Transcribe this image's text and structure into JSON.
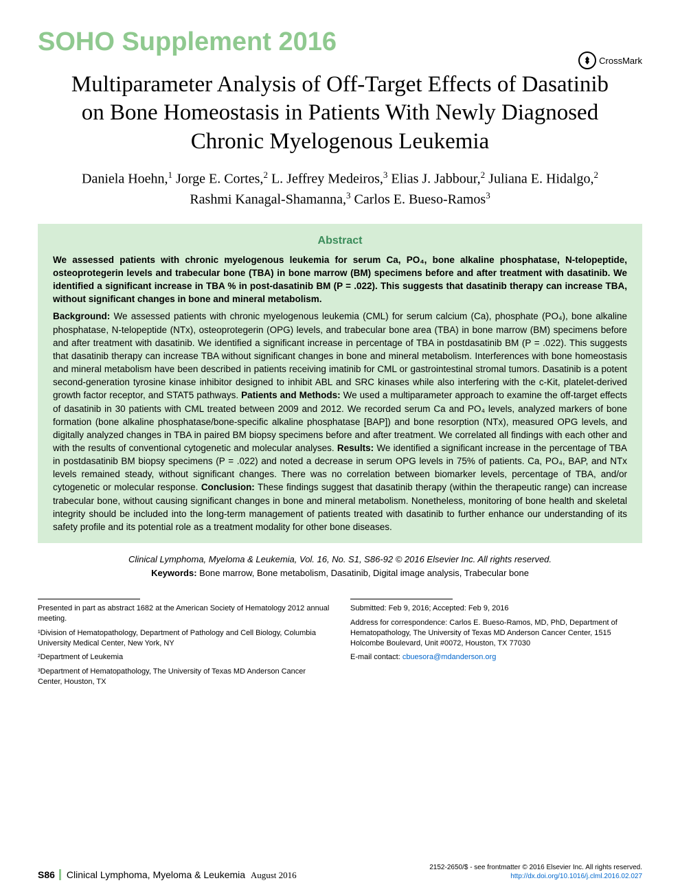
{
  "header": {
    "banner": "SOHO Supplement 2016",
    "crossmark_label": "CrossMark"
  },
  "title": "Multiparameter Analysis of Off-Target Effects of Dasatinib on Bone Homeostasis in Patients With Newly Diagnosed Chronic Myelogenous Leukemia",
  "authors_html": "Daniela Hoehn,<sup>1</sup> Jorge E. Cortes,<sup>2</sup> L. Jeffrey Medeiros,<sup>3</sup> Elias J. Jabbour,<sup>2</sup> Juliana E. Hidalgo,<sup>2</sup> Rashmi Kanagal-Shamanna,<sup>3</sup> Carlos E. Bueso-Ramos<sup>3</sup>",
  "abstract": {
    "heading": "Abstract",
    "summary": "We assessed patients with chronic myelogenous leukemia for serum Ca, PO₄, bone alkaline phosphatase, N-telopeptide, osteoprotegerin levels and trabecular bone (TBA) in bone marrow (BM) specimens before and after treatment with dasatinib. We identified a significant increase in TBA % in post-dasatinib BM (P = .022). This suggests that dasatinib therapy can increase TBA, without significant changes in bone and mineral metabolism.",
    "background_label": "Background:",
    "background": " We assessed patients with chronic myelogenous leukemia (CML) for serum calcium (Ca), phosphate (PO₄), bone alkaline phosphatase, N-telopeptide (NTx), osteoprotegerin (OPG) levels, and trabecular bone area (TBA) in bone marrow (BM) specimens before and after treatment with dasatinib. We identified a significant increase in percentage of TBA in postdasatinib BM (P = .022). This suggests that dasatinib therapy can increase TBA without significant changes in bone and mineral metabolism. Interferences with bone homeostasis and mineral metabolism have been described in patients receiving imatinib for CML or gastrointestinal stromal tumors. Dasatinib is a potent second-generation tyrosine kinase inhibitor designed to inhibit ABL and SRC kinases while also interfering with the c-Kit, platelet-derived growth factor receptor, and STAT5 pathways. ",
    "methods_label": "Patients and Methods:",
    "methods": " We used a multiparameter approach to examine the off-target effects of dasatinib in 30 patients with CML treated between 2009 and 2012. We recorded serum Ca and PO₄ levels, analyzed markers of bone formation (bone alkaline phosphatase/bone-specific alkaline phosphatase [BAP]) and bone resorption (NTx), measured OPG levels, and digitally analyzed changes in TBA in paired BM biopsy specimens before and after treatment. We correlated all findings with each other and with the results of conventional cytogenetic and molecular analyses. ",
    "results_label": "Results:",
    "results": " We identified a significant increase in the percentage of TBA in postdasatinib BM biopsy specimens (P = .022) and noted a decrease in serum OPG levels in 75% of patients. Ca, PO₄, BAP, and NTx levels remained steady, without significant changes. There was no correlation between biomarker levels, percentage of TBA, and/or cytogenetic or molecular response. ",
    "conclusion_label": "Conclusion:",
    "conclusion": " These findings suggest that dasatinib therapy (within the therapeutic range) can increase trabecular bone, without causing significant changes in bone and mineral metabolism. Nonetheless, monitoring of bone health and skeletal integrity should be included into the long-term management of patients treated with dasatinib to further enhance our understanding of its safety profile and its potential role as a treatment modality for other bone diseases."
  },
  "citation": {
    "journal_line": "Clinical Lymphoma, Myeloma & Leukemia, Vol. 16, No. S1, S86-92 © 2016 Elsevier Inc. All rights reserved.",
    "keywords_label": "Keywords:",
    "keywords": " Bone marrow, Bone metabolism, Dasatinib, Digital image analysis, Trabecular bone"
  },
  "footer_left": {
    "presented": "Presented in part as abstract 1682 at the American Society of Hematology 2012 annual meeting.",
    "aff1": "¹Division of Hematopathology, Department of Pathology and Cell Biology, Columbia University Medical Center, New York, NY",
    "aff2": "²Department of Leukemia",
    "aff3": "³Department of Hematopathology, The University of Texas MD Anderson Cancer Center, Houston, TX"
  },
  "footer_right": {
    "dates": "Submitted: Feb 9, 2016; Accepted: Feb 9, 2016",
    "correspondence": "Address for correspondence: Carlos E. Bueso-Ramos, MD, PhD, Department of Hematopathology, The University of Texas MD Anderson Cancer Center, 1515 Holcombe Boulevard, Unit #0072, Houston, TX 77030",
    "email_label": "E-mail contact: ",
    "email": "cbuesora@mdanderson.org"
  },
  "page_footer": {
    "page_num": "S86",
    "journal": "Clinical Lymphoma, Myeloma & Leukemia",
    "issue_date": "August 2016",
    "issn_line": "2152-2650/$ - see frontmatter © 2016 Elsevier Inc. All rights reserved.",
    "doi": "http://dx.doi.org/10.1016/j.clml.2016.02.027"
  },
  "colors": {
    "banner_green": "#8fc98f",
    "abstract_bg": "#d6edd6",
    "abstract_heading": "#3a8c5a",
    "link": "#0066cc"
  }
}
